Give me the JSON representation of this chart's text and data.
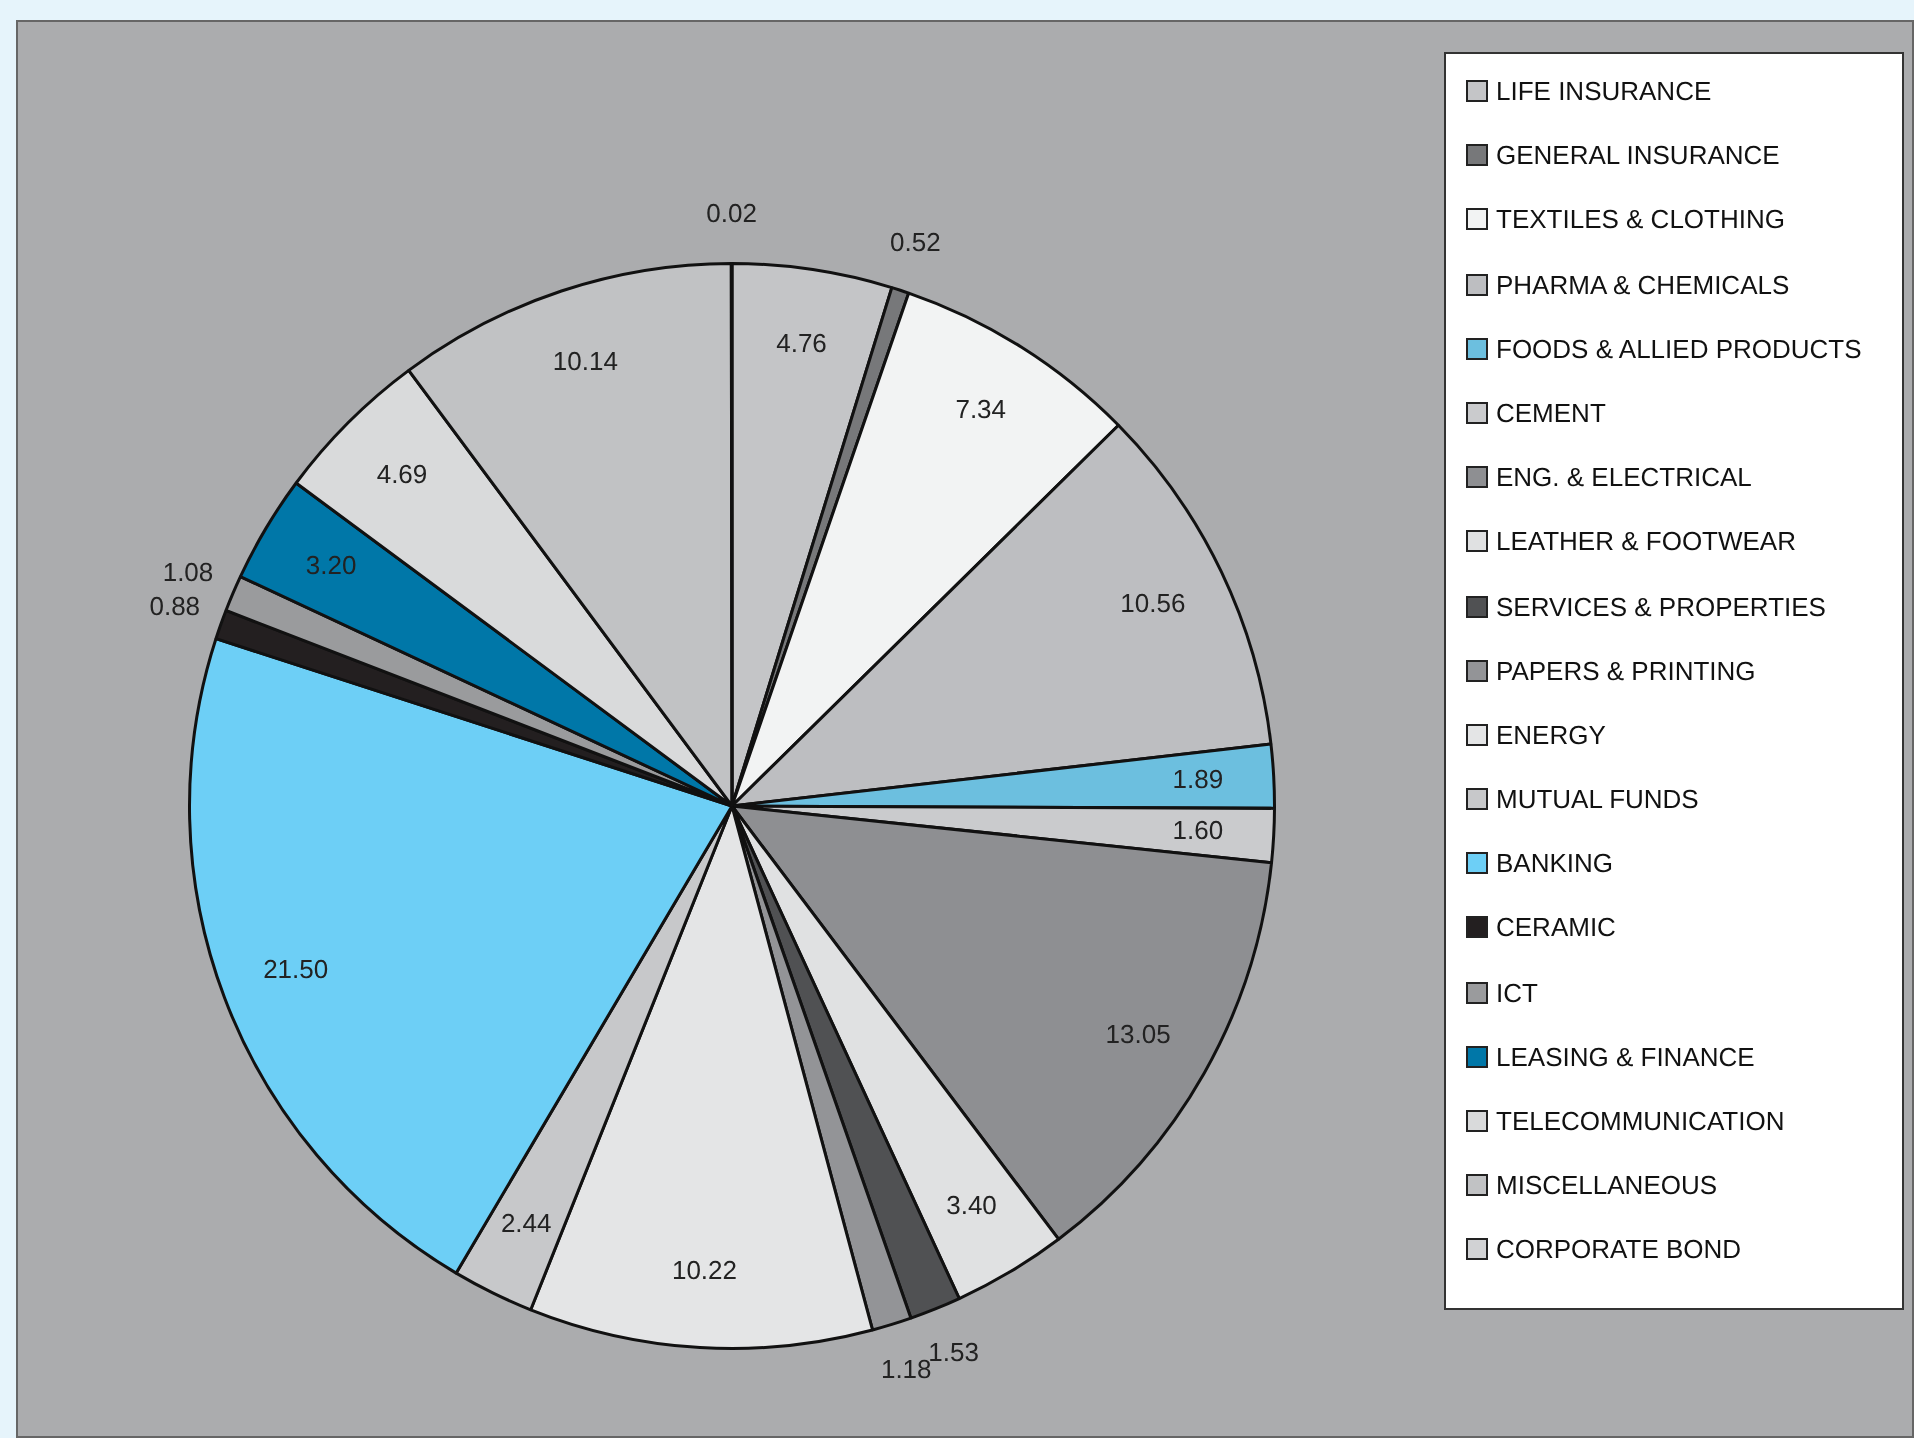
{
  "chart_data": {
    "type": "pie",
    "categories": [
      "LIFE INSURANCE",
      "GENERAL INSURANCE",
      "TEXTILES & CLOTHING",
      "PHARMA & CHEMICALS",
      "FOODS & ALLIED PRODUCTS",
      "CEMENT",
      "ENG. & ELECTRICAL",
      "LEATHER & FOOTWEAR",
      "SERVICES & PROPERTIES",
      "PAPERS & PRINTING",
      "ENERGY",
      "MUTUAL FUNDS",
      "BANKING",
      "CERAMIC",
      "ICT",
      "LEASING & FINANCE",
      "TELECOMMUNICATION",
      "MISCELLANEOUS",
      "CORPORATE BOND"
    ],
    "values": [
      4.76,
      0.52,
      7.34,
      10.56,
      1.89,
      1.6,
      13.05,
      3.4,
      1.53,
      1.18,
      10.22,
      2.44,
      21.5,
      0.88,
      1.08,
      3.2,
      4.69,
      10.14,
      0.02
    ],
    "colors": [
      "#c4c5c7",
      "#77787a",
      "#f2f3f3",
      "#bdbec1",
      "#6cbfdf",
      "#cacbcd",
      "#8e8f92",
      "#e0e1e2",
      "#505153",
      "#939497",
      "#e4e5e6",
      "#c7c8ca",
      "#6dcff6",
      "#231f20",
      "#9a9b9d",
      "#0077a8",
      "#d9dadb",
      "#c1c2c4",
      "#d1d2d4"
    ],
    "value_labels": [
      "4.76",
      "0.52",
      "7.34",
      "10.56",
      "1.89",
      "1.60",
      "13.05",
      "3.40",
      "1.53",
      "1.18",
      "10.22",
      "2.44",
      "21.50",
      "0.88",
      "1.08",
      "3.20",
      "4.69",
      "10.14",
      "0.02"
    ],
    "legend": "right"
  }
}
